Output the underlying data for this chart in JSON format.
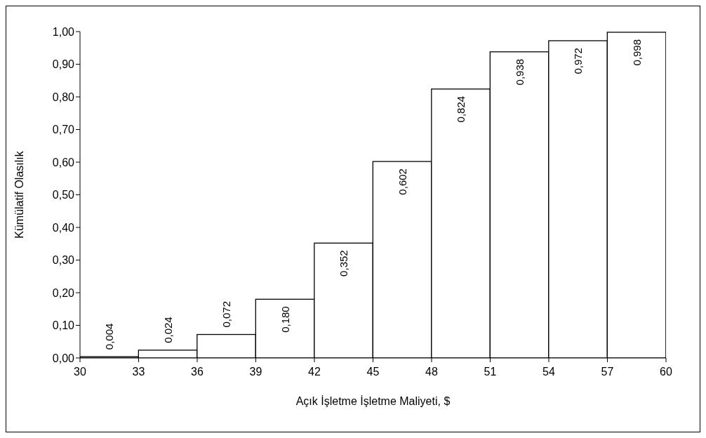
{
  "chart_data": {
    "type": "histogram",
    "xlabel": "Açık İşletme İşletme Maliyeti, $",
    "ylabel": "Kümülatif Olasılık",
    "bins": [
      30,
      33,
      36,
      39,
      42,
      45,
      48,
      51,
      54,
      57,
      60
    ],
    "values": [
      0.004,
      0.024,
      0.072,
      0.18,
      0.352,
      0.602,
      0.824,
      0.938,
      0.972,
      0.998
    ],
    "value_labels": [
      "0,004",
      "0,024",
      "0,072",
      "0,180",
      "0,352",
      "0,602",
      "0,824",
      "0,938",
      "0,972",
      "0,998"
    ],
    "color": "#ffffff",
    "xlim": [
      30,
      60
    ],
    "xticks": [
      30,
      33,
      36,
      39,
      42,
      45,
      48,
      51,
      54,
      57,
      60
    ],
    "ylim": [
      0,
      1
    ],
    "yticks": [
      {
        "value": 0,
        "label": "0,00"
      },
      {
        "value": 0.1,
        "label": "0,10"
      },
      {
        "value": 0.2,
        "label": "0,20"
      },
      {
        "value": 0.3,
        "label": "0,30"
      },
      {
        "value": 0.4,
        "label": "0,40"
      },
      {
        "value": 0.5,
        "label": "0,50"
      },
      {
        "value": 0.6,
        "label": "0,60"
      },
      {
        "value": 0.7,
        "label": "0,70"
      },
      {
        "value": 0.8,
        "label": "0,80"
      },
      {
        "value": 0.9,
        "label": "0,90"
      },
      {
        "value": 1,
        "label": "1,00"
      }
    ],
    "grid": false,
    "legend": false
  }
}
